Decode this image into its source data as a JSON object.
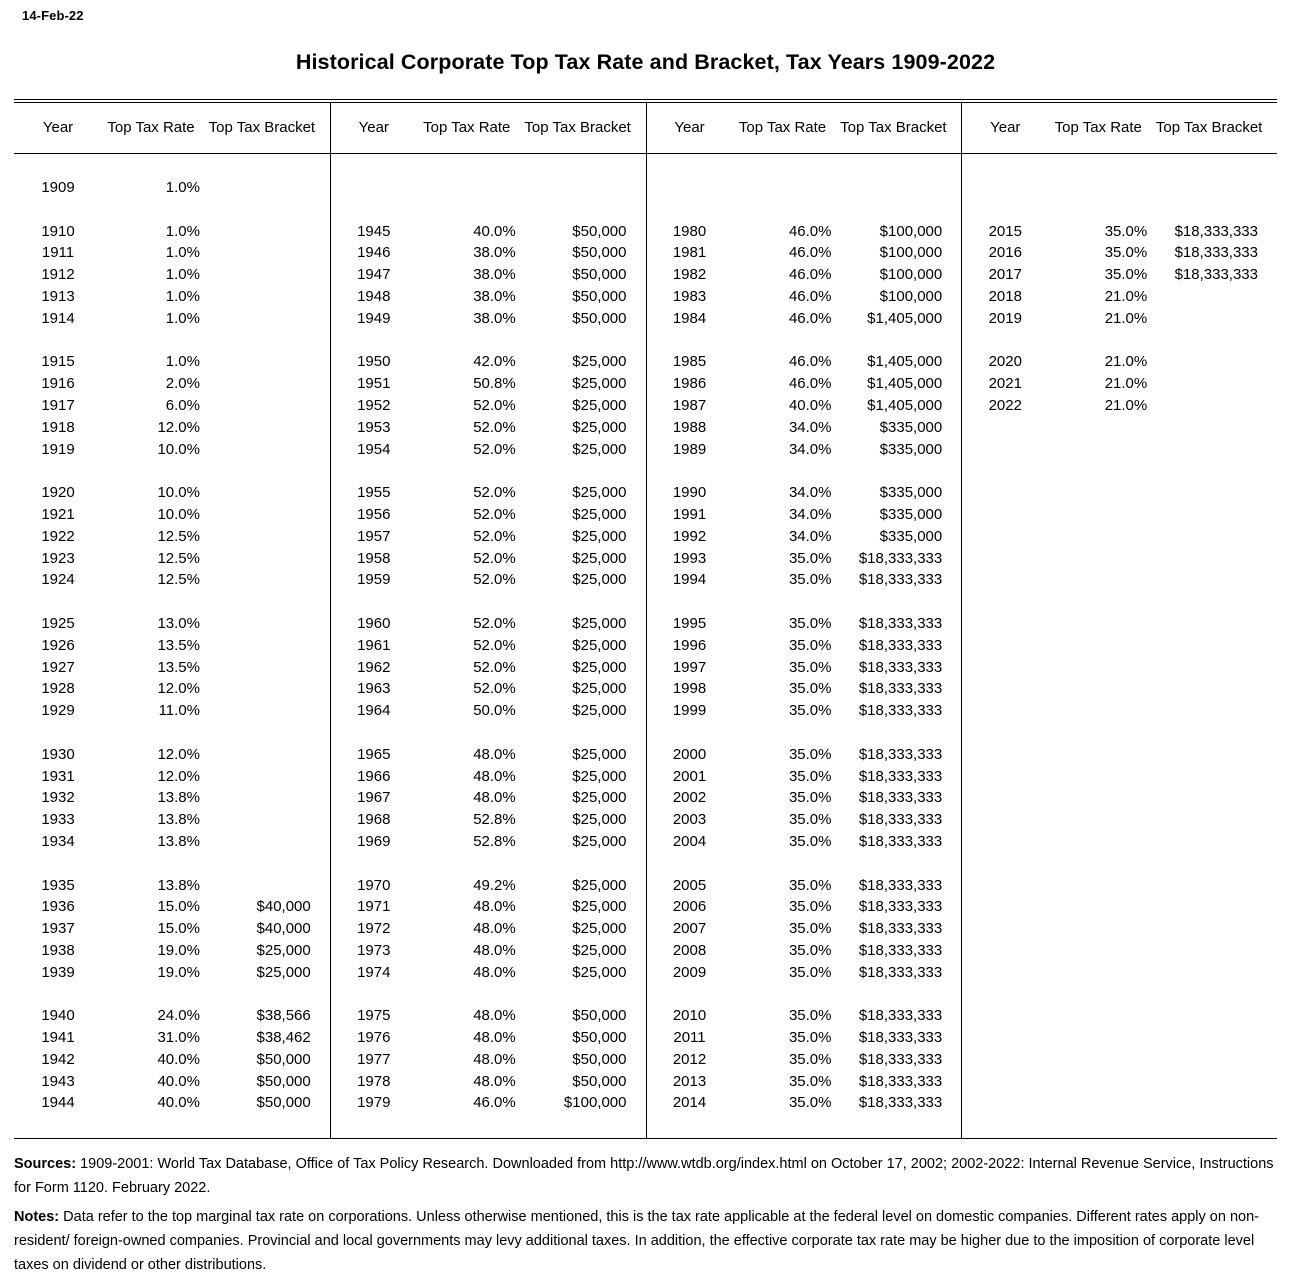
{
  "header": {
    "date_stamp": "14-Feb-22",
    "title": "Historical Corporate Top Tax Rate and Bracket, Tax Years 1909-2022"
  },
  "table": {
    "column_headers": {
      "year": "Year",
      "rate": "Top Tax Rate",
      "bracket": "Top Tax Bracket"
    },
    "rows": [
      [
        [
          "1909",
          "1.0%",
          ""
        ],
        null,
        null,
        null
      ],
      null,
      [
        [
          "1910",
          "1.0%",
          ""
        ],
        [
          "1945",
          "40.0%",
          "$50,000"
        ],
        [
          "1980",
          "46.0%",
          "$100,000"
        ],
        [
          "2015",
          "35.0%",
          "$18,333,333"
        ]
      ],
      [
        [
          "1911",
          "1.0%",
          ""
        ],
        [
          "1946",
          "38.0%",
          "$50,000"
        ],
        [
          "1981",
          "46.0%",
          "$100,000"
        ],
        [
          "2016",
          "35.0%",
          "$18,333,333"
        ]
      ],
      [
        [
          "1912",
          "1.0%",
          ""
        ],
        [
          "1947",
          "38.0%",
          "$50,000"
        ],
        [
          "1982",
          "46.0%",
          "$100,000"
        ],
        [
          "2017",
          "35.0%",
          "$18,333,333"
        ]
      ],
      [
        [
          "1913",
          "1.0%",
          ""
        ],
        [
          "1948",
          "38.0%",
          "$50,000"
        ],
        [
          "1983",
          "46.0%",
          "$100,000"
        ],
        [
          "2018",
          "21.0%",
          ""
        ]
      ],
      [
        [
          "1914",
          "1.0%",
          ""
        ],
        [
          "1949",
          "38.0%",
          "$50,000"
        ],
        [
          "1984",
          "46.0%",
          "$1,405,000"
        ],
        [
          "2019",
          "21.0%",
          ""
        ]
      ],
      null,
      [
        [
          "1915",
          "1.0%",
          ""
        ],
        [
          "1950",
          "42.0%",
          "$25,000"
        ],
        [
          "1985",
          "46.0%",
          "$1,405,000"
        ],
        [
          "2020",
          "21.0%",
          ""
        ]
      ],
      [
        [
          "1916",
          "2.0%",
          ""
        ],
        [
          "1951",
          "50.8%",
          "$25,000"
        ],
        [
          "1986",
          "46.0%",
          "$1,405,000"
        ],
        [
          "2021",
          "21.0%",
          ""
        ]
      ],
      [
        [
          "1917",
          "6.0%",
          ""
        ],
        [
          "1952",
          "52.0%",
          "$25,000"
        ],
        [
          "1987",
          "40.0%",
          "$1,405,000"
        ],
        [
          "2022",
          "21.0%",
          ""
        ]
      ],
      [
        [
          "1918",
          "12.0%",
          ""
        ],
        [
          "1953",
          "52.0%",
          "$25,000"
        ],
        [
          "1988",
          "34.0%",
          "$335,000"
        ],
        null
      ],
      [
        [
          "1919",
          "10.0%",
          ""
        ],
        [
          "1954",
          "52.0%",
          "$25,000"
        ],
        [
          "1989",
          "34.0%",
          "$335,000"
        ],
        null
      ],
      null,
      [
        [
          "1920",
          "10.0%",
          ""
        ],
        [
          "1955",
          "52.0%",
          "$25,000"
        ],
        [
          "1990",
          "34.0%",
          "$335,000"
        ],
        null
      ],
      [
        [
          "1921",
          "10.0%",
          ""
        ],
        [
          "1956",
          "52.0%",
          "$25,000"
        ],
        [
          "1991",
          "34.0%",
          "$335,000"
        ],
        null
      ],
      [
        [
          "1922",
          "12.5%",
          ""
        ],
        [
          "1957",
          "52.0%",
          "$25,000"
        ],
        [
          "1992",
          "34.0%",
          "$335,000"
        ],
        null
      ],
      [
        [
          "1923",
          "12.5%",
          ""
        ],
        [
          "1958",
          "52.0%",
          "$25,000"
        ],
        [
          "1993",
          "35.0%",
          "$18,333,333"
        ],
        null
      ],
      [
        [
          "1924",
          "12.5%",
          ""
        ],
        [
          "1959",
          "52.0%",
          "$25,000"
        ],
        [
          "1994",
          "35.0%",
          "$18,333,333"
        ],
        null
      ],
      null,
      [
        [
          "1925",
          "13.0%",
          ""
        ],
        [
          "1960",
          "52.0%",
          "$25,000"
        ],
        [
          "1995",
          "35.0%",
          "$18,333,333"
        ],
        null
      ],
      [
        [
          "1926",
          "13.5%",
          ""
        ],
        [
          "1961",
          "52.0%",
          "$25,000"
        ],
        [
          "1996",
          "35.0%",
          "$18,333,333"
        ],
        null
      ],
      [
        [
          "1927",
          "13.5%",
          ""
        ],
        [
          "1962",
          "52.0%",
          "$25,000"
        ],
        [
          "1997",
          "35.0%",
          "$18,333,333"
        ],
        null
      ],
      [
        [
          "1928",
          "12.0%",
          ""
        ],
        [
          "1963",
          "52.0%",
          "$25,000"
        ],
        [
          "1998",
          "35.0%",
          "$18,333,333"
        ],
        null
      ],
      [
        [
          "1929",
          "11.0%",
          ""
        ],
        [
          "1964",
          "50.0%",
          "$25,000"
        ],
        [
          "1999",
          "35.0%",
          "$18,333,333"
        ],
        null
      ],
      null,
      [
        [
          "1930",
          "12.0%",
          ""
        ],
        [
          "1965",
          "48.0%",
          "$25,000"
        ],
        [
          "2000",
          "35.0%",
          "$18,333,333"
        ],
        null
      ],
      [
        [
          "1931",
          "12.0%",
          ""
        ],
        [
          "1966",
          "48.0%",
          "$25,000"
        ],
        [
          "2001",
          "35.0%",
          "$18,333,333"
        ],
        null
      ],
      [
        [
          "1932",
          "13.8%",
          ""
        ],
        [
          "1967",
          "48.0%",
          "$25,000"
        ],
        [
          "2002",
          "35.0%",
          "$18,333,333"
        ],
        null
      ],
      [
        [
          "1933",
          "13.8%",
          ""
        ],
        [
          "1968",
          "52.8%",
          "$25,000"
        ],
        [
          "2003",
          "35.0%",
          "$18,333,333"
        ],
        null
      ],
      [
        [
          "1934",
          "13.8%",
          ""
        ],
        [
          "1969",
          "52.8%",
          "$25,000"
        ],
        [
          "2004",
          "35.0%",
          "$18,333,333"
        ],
        null
      ],
      null,
      [
        [
          "1935",
          "13.8%",
          ""
        ],
        [
          "1970",
          "49.2%",
          "$25,000"
        ],
        [
          "2005",
          "35.0%",
          "$18,333,333"
        ],
        null
      ],
      [
        [
          "1936",
          "15.0%",
          "$40,000"
        ],
        [
          "1971",
          "48.0%",
          "$25,000"
        ],
        [
          "2006",
          "35.0%",
          "$18,333,333"
        ],
        null
      ],
      [
        [
          "1937",
          "15.0%",
          "$40,000"
        ],
        [
          "1972",
          "48.0%",
          "$25,000"
        ],
        [
          "2007",
          "35.0%",
          "$18,333,333"
        ],
        null
      ],
      [
        [
          "1938",
          "19.0%",
          "$25,000"
        ],
        [
          "1973",
          "48.0%",
          "$25,000"
        ],
        [
          "2008",
          "35.0%",
          "$18,333,333"
        ],
        null
      ],
      [
        [
          "1939",
          "19.0%",
          "$25,000"
        ],
        [
          "1974",
          "48.0%",
          "$25,000"
        ],
        [
          "2009",
          "35.0%",
          "$18,333,333"
        ],
        null
      ],
      null,
      [
        [
          "1940",
          "24.0%",
          "$38,566"
        ],
        [
          "1975",
          "48.0%",
          "$50,000"
        ],
        [
          "2010",
          "35.0%",
          "$18,333,333"
        ],
        null
      ],
      [
        [
          "1941",
          "31.0%",
          "$38,462"
        ],
        [
          "1976",
          "48.0%",
          "$50,000"
        ],
        [
          "2011",
          "35.0%",
          "$18,333,333"
        ],
        null
      ],
      [
        [
          "1942",
          "40.0%",
          "$50,000"
        ],
        [
          "1977",
          "48.0%",
          "$50,000"
        ],
        [
          "2012",
          "35.0%",
          "$18,333,333"
        ],
        null
      ],
      [
        [
          "1943",
          "40.0%",
          "$50,000"
        ],
        [
          "1978",
          "48.0%",
          "$50,000"
        ],
        [
          "2013",
          "35.0%",
          "$18,333,333"
        ],
        null
      ],
      [
        [
          "1944",
          "40.0%",
          "$50,000"
        ],
        [
          "1979",
          "46.0%",
          "$100,000"
        ],
        [
          "2014",
          "35.0%",
          "$18,333,333"
        ],
        null
      ]
    ]
  },
  "footer": {
    "sources_label": "Sources:",
    "sources_text": "1909-2001: World Tax Database, Office of Tax Policy Research. Downloaded from http://www.wtdb.org/index.html on October 17, 2002; 2002-2022: Internal Revenue Service, Instructions for Form 1120. February 2022.",
    "notes_label": "Notes:",
    "notes_text": "Data refer to the top marginal tax rate on corporations. Unless otherwise mentioned, this is the tax rate applicable at the federal level on domestic companies. Different rates apply on non-resident/ foreign-owned companies. Provincial and local governments may levy additional taxes. In addition, the effective corporate tax rate may be higher due to the imposition of corporate level taxes on dividend or other distributions."
  },
  "colors": {
    "text": "#000000",
    "background": "#ffffff",
    "rule": "#000000"
  }
}
